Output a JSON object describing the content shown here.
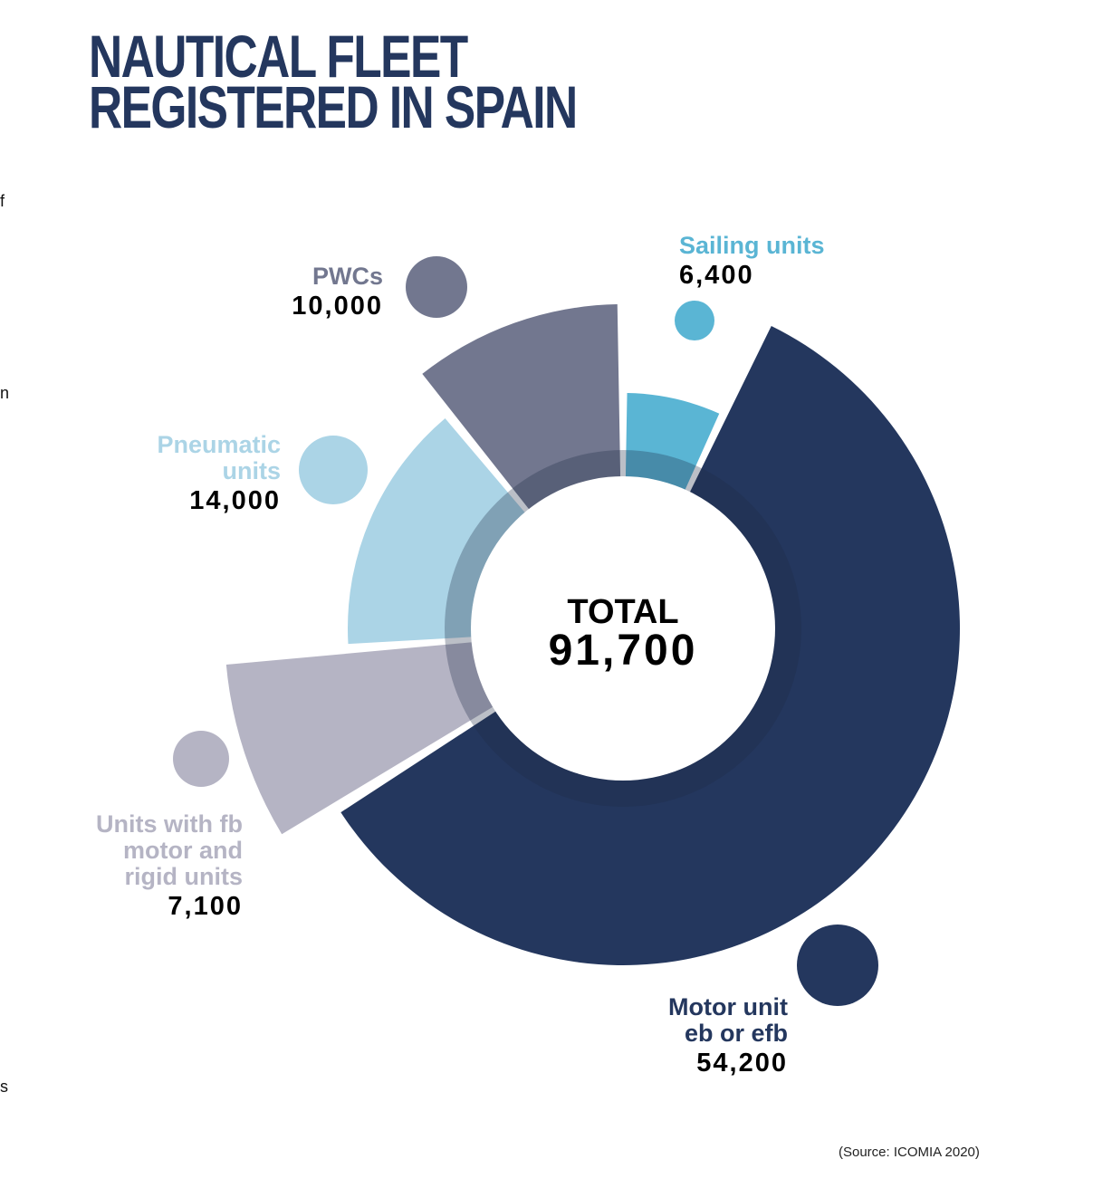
{
  "page": {
    "title_line1": "NAUTICAL FLEET",
    "title_line2": "REGISTERED IN SPAIN",
    "source": "(Source: ICOMIA 2020)",
    "edge_fragments": [
      "f",
      "n",
      "s"
    ]
  },
  "chart_data": {
    "type": "pie",
    "subtype": "polar-area donut",
    "title": "NAUTICAL FLEET REGISTERED IN SPAIN",
    "center_label": "TOTAL",
    "total": 91700,
    "total_label": "91,700",
    "legend_placement": "labels next to each slice with colored dot markers",
    "slices": [
      {
        "name": "Sailing units",
        "label_lines": [
          "Sailing units"
        ],
        "value": 6400,
        "value_label": "6,400",
        "color": "#5ab5d4"
      },
      {
        "name": "Motor unit eb or efb",
        "label_lines": [
          "Motor unit",
          "eb or efb"
        ],
        "value": 54200,
        "value_label": "54,200",
        "color": "#24375e"
      },
      {
        "name": "Units with fb motor and rigid units",
        "label_lines": [
          "Units with fb",
          "motor and",
          "rigid units"
        ],
        "value": 7100,
        "value_label": "7,100",
        "color": "#b5b4c4"
      },
      {
        "name": "Pneumatic units",
        "label_lines": [
          "Pneumatic",
          "units"
        ],
        "value": 14000,
        "value_label": "14,000",
        "color": "#abd4e6"
      },
      {
        "name": "PWCs",
        "label_lines": [
          "PWCs"
        ],
        "value": 10000,
        "value_label": "10,000",
        "color": "#72778f"
      }
    ]
  }
}
